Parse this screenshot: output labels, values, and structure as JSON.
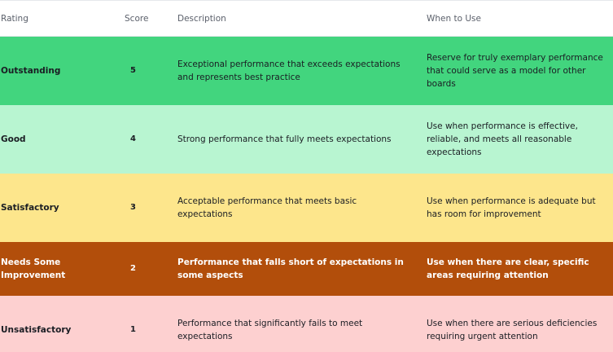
{
  "table": {
    "headers": {
      "rating": "Rating",
      "score": "Score",
      "description": "Description",
      "when": "When to Use"
    },
    "rows": [
      {
        "rating": "Outstanding",
        "score": "5",
        "description": "Exceptional performance that exceeds expectations and represents best practice",
        "when": "Reserve for truly exemplary performance that could serve as a model for other boards",
        "color": "#42d57e"
      },
      {
        "rating": "Good",
        "score": "4",
        "description": "Strong performance that fully meets expectations",
        "when": "Use when performance is effective, reliable, and meets all reasonable expectations",
        "color": "#b8f5d1"
      },
      {
        "rating": "Satisfactory",
        "score": "3",
        "description": "Acceptable performance that meets basic expectations",
        "when": "Use when performance is adequate but has room for improvement",
        "color": "#fde68c"
      },
      {
        "rating": "Needs Some Improvement",
        "score": "2",
        "description": "Performance that falls short of expectations in some aspects",
        "when": "Use when there are clear, specific areas requiring attention",
        "color": "#b24e0b"
      },
      {
        "rating": "Unsatisfactory",
        "score": "1",
        "description": "Performance that significantly fails to meet expectations",
        "when": "Use when there are serious deficiencies requiring urgent attention",
        "color": "#fdd0d0"
      }
    ]
  }
}
